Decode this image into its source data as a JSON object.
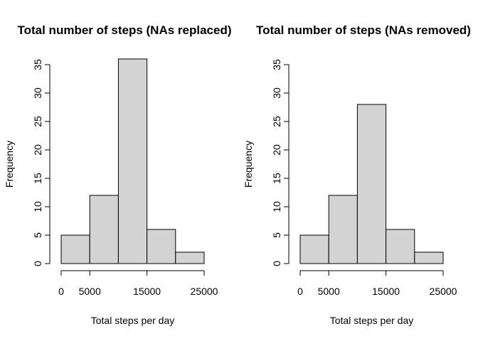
{
  "chart_data": [
    {
      "type": "bar",
      "title": "Total number of steps (NAs replaced)",
      "xlabel": "Total steps per day",
      "ylabel": "Frequency",
      "bin_edges": [
        0,
        5000,
        10000,
        15000,
        20000,
        25000
      ],
      "values": [
        5,
        12,
        36,
        6,
        2
      ],
      "xticks": [
        0,
        5000,
        15000,
        25000
      ],
      "yticks": [
        0,
        5,
        10,
        15,
        20,
        25,
        30,
        35
      ],
      "xlim": [
        0,
        25000
      ],
      "ylim": [
        0,
        35
      ],
      "grid": false
    },
    {
      "type": "bar",
      "title": "Total number of steps (NAs removed)",
      "xlabel": "Total steps per day",
      "ylabel": "Frequency",
      "bin_edges": [
        0,
        5000,
        10000,
        15000,
        20000,
        25000
      ],
      "values": [
        5,
        12,
        28,
        6,
        2
      ],
      "xticks": [
        0,
        5000,
        15000,
        25000
      ],
      "yticks": [
        0,
        5,
        10,
        15,
        20,
        25,
        30,
        35
      ],
      "xlim": [
        0,
        25000
      ],
      "ylim": [
        0,
        35
      ],
      "grid": false
    }
  ]
}
